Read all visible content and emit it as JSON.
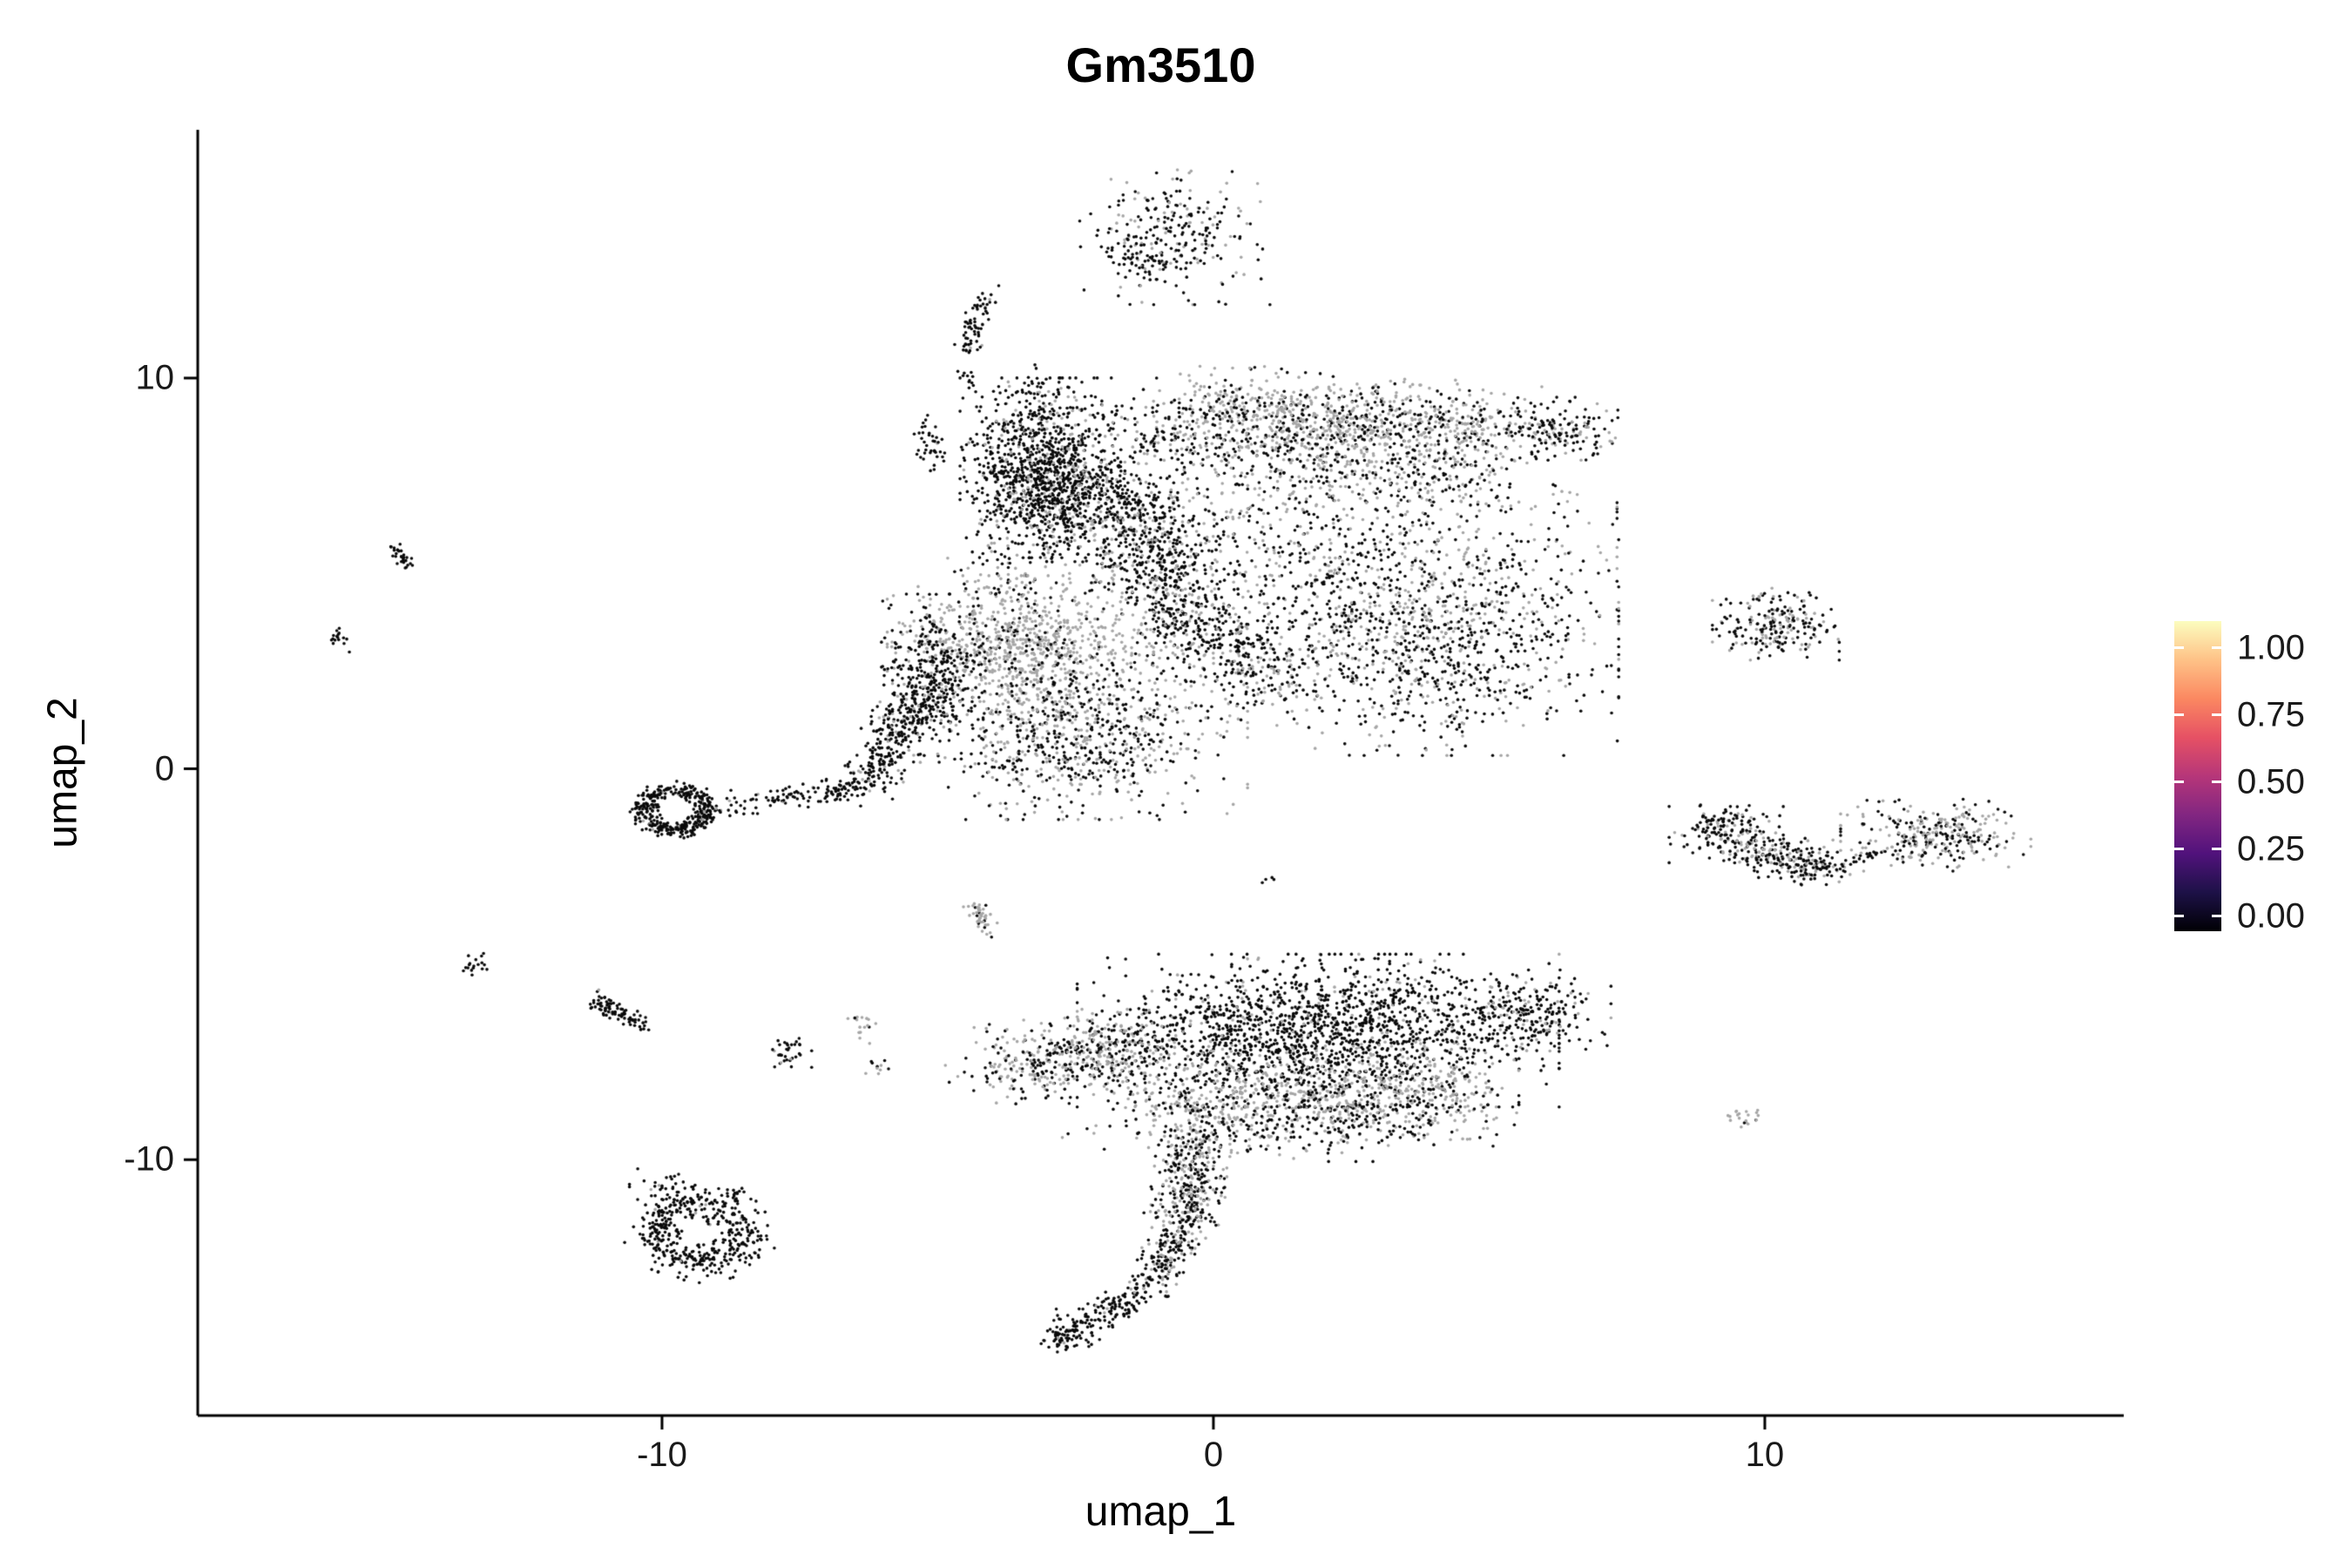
{
  "figure": {
    "title": "Gm3510",
    "xlabel": "umap_1",
    "ylabel": "umap_2"
  },
  "chart_data": {
    "type": "scatter",
    "title": "Gm3510",
    "xlabel": "umap_1",
    "ylabel": "umap_2",
    "xlim": [
      -18.42,
      16.51
    ],
    "ylim": [
      -16.55,
      16.35
    ],
    "x_ticks": [
      -10,
      0,
      10
    ],
    "x_tick_labels": [
      "-10",
      "0",
      "10"
    ],
    "y_ticks": [
      10,
      0,
      -10
    ],
    "y_tick_labels": [
      "10",
      "0",
      "-10"
    ],
    "grid": false,
    "legend": {
      "position": "right",
      "ticks": [
        1.0,
        0.75,
        0.5,
        0.25,
        0.0
      ],
      "tick_labels": [
        "1.00",
        "0.75",
        "0.50",
        "0.25",
        "0.00"
      ],
      "range": [
        -0.056,
        1.1
      ],
      "gradient_bottom_to_top": [
        "#000004",
        "#1D1147",
        "#51127C",
        "#822681",
        "#B63679",
        "#E65164",
        "#FB8861",
        "#FEC287",
        "#FCFDBF"
      ]
    },
    "point_colors": {
      "expression_low_black": "#0A0A0A",
      "background_gray": "#A6A6A6"
    },
    "point_radius_px": 1.8,
    "clusters": [
      {
        "kind": "blob",
        "x": -0.7,
        "y": 13.6,
        "sx": 0.75,
        "sy": 0.75,
        "n": 260,
        "gray": 0.3
      },
      {
        "kind": "blob",
        "x": -1.4,
        "y": 13.1,
        "sx": 0.3,
        "sy": 0.3,
        "n": 40,
        "gray": 0.1
      },
      {
        "kind": "streak",
        "x1": -4.15,
        "y1": 12.2,
        "x2": -4.5,
        "y2": 10.6,
        "w": 0.12,
        "n": 70,
        "gray": 0.05
      },
      {
        "kind": "blob",
        "x": -4.45,
        "y": 9.9,
        "sx": 0.1,
        "sy": 0.2,
        "n": 12,
        "gray": 0
      },
      {
        "kind": "blob",
        "x": -5.15,
        "y": 8.3,
        "sx": 0.12,
        "sy": 0.45,
        "n": 40,
        "gray": 0.05
      },
      {
        "kind": "blob",
        "x": -3.3,
        "y": 9.3,
        "sx": 0.25,
        "sy": 0.45,
        "n": 50,
        "gray": 0.15
      },
      {
        "kind": "blob",
        "x": -3.1,
        "y": 7.7,
        "sx": 0.65,
        "sy": 1.0,
        "n": 1000,
        "gray": 0.12
      },
      {
        "kind": "blob",
        "x": -2.4,
        "y": 6.6,
        "sx": 0.8,
        "sy": 0.8,
        "n": 350,
        "gray": 0.35
      },
      {
        "kind": "streak",
        "x1": -0.3,
        "y1": 9.3,
        "x2": 5.3,
        "y2": 8.7,
        "w": 0.45,
        "n": 800,
        "gray": 0.75
      },
      {
        "kind": "streak",
        "x1": -1.5,
        "y1": 8.6,
        "x2": 5.0,
        "y2": 7.6,
        "w": 0.55,
        "n": 650,
        "gray": 0.45
      },
      {
        "kind": "blob",
        "x": 6.3,
        "y": 8.7,
        "sx": 0.45,
        "sy": 0.35,
        "n": 160,
        "gray": 0.3
      },
      {
        "kind": "blob",
        "x": 1.8,
        "y": 5.6,
        "sx": 2.4,
        "sy": 1.5,
        "n": 1000,
        "gray": 0.5
      },
      {
        "kind": "blob",
        "x": 3.9,
        "y": 3.1,
        "sx": 1.5,
        "sy": 1.2,
        "n": 900,
        "gray": 0.35
      },
      {
        "kind": "streak",
        "x1": -1.8,
        "y1": 7.0,
        "x2": -0.3,
        "y2": 3.6,
        "w": 0.5,
        "n": 550,
        "gray": 0.25
      },
      {
        "kind": "streak",
        "x1": -0.3,
        "y1": 3.6,
        "x2": 1.2,
        "y2": 2.2,
        "w": 0.5,
        "n": 300,
        "gray": 0.3
      },
      {
        "kind": "blob",
        "x": -4.0,
        "y": 5.0,
        "sx": 0.5,
        "sy": 0.6,
        "n": 60,
        "gray": 0.3
      },
      {
        "kind": "blob",
        "x": -3.5,
        "y": 3.1,
        "sx": 1.05,
        "sy": 0.8,
        "n": 800,
        "gray": 0.85
      },
      {
        "kind": "blob",
        "x": -5.1,
        "y": 2.4,
        "sx": 0.4,
        "sy": 0.9,
        "n": 350,
        "gray": 0.1
      },
      {
        "kind": "blob",
        "x": -2.6,
        "y": 1.0,
        "sx": 1.4,
        "sy": 1.0,
        "n": 850,
        "gray": 0.45
      },
      {
        "kind": "streak",
        "x1": -5.4,
        "y1": 1.6,
        "x2": -6.3,
        "y2": -0.4,
        "w": 0.28,
        "n": 260,
        "gray": 0.08
      },
      {
        "kind": "streak",
        "x1": -6.4,
        "y1": -0.5,
        "x2": -8.7,
        "y2": -0.9,
        "w": 0.14,
        "n": 110,
        "gray": 0.05
      },
      {
        "kind": "ring",
        "x": -9.75,
        "y": -1.05,
        "rx": 0.6,
        "ry": 0.5,
        "jitter": 0.2,
        "n": 380,
        "gray": 0.04
      },
      {
        "kind": "streak",
        "x1": -14.9,
        "y1": 5.7,
        "x2": -14.6,
        "y2": 5.2,
        "w": 0.08,
        "n": 30,
        "gray": 0
      },
      {
        "kind": "blob",
        "x": -15.9,
        "y": 3.4,
        "sx": 0.1,
        "sy": 0.18,
        "n": 16,
        "gray": 0
      },
      {
        "kind": "blob",
        "x": 10.2,
        "y": 3.7,
        "sx": 0.5,
        "sy": 0.4,
        "n": 220,
        "gray": 0.35
      },
      {
        "kind": "blob",
        "x": 9.3,
        "y": -1.6,
        "sx": 0.45,
        "sy": 0.35,
        "n": 170,
        "gray": 0.25
      },
      {
        "kind": "streak",
        "x1": 9.7,
        "y1": -2.0,
        "x2": 11.2,
        "y2": -2.6,
        "w": 0.25,
        "n": 240,
        "gray": 0.3
      },
      {
        "kind": "streak",
        "x1": 11.4,
        "y1": -2.45,
        "x2": 12.2,
        "y2": -2.1,
        "w": 0.06,
        "n": 22,
        "gray": 0.1
      },
      {
        "kind": "blob",
        "x": 13.1,
        "y": -1.7,
        "sx": 0.75,
        "sy": 0.4,
        "n": 300,
        "gray": 0.55
      },
      {
        "kind": "blob",
        "x": 1.0,
        "y": -2.9,
        "sx": 0.07,
        "sy": 0.07,
        "n": 4,
        "gray": 0
      },
      {
        "kind": "streak",
        "x1": -4.4,
        "y1": -3.4,
        "x2": -4.0,
        "y2": -4.2,
        "w": 0.1,
        "n": 45,
        "gray": 0.8
      },
      {
        "kind": "blob",
        "x": -13.4,
        "y": -5.0,
        "sx": 0.12,
        "sy": 0.12,
        "n": 18,
        "gray": 0
      },
      {
        "kind": "streak",
        "x1": -11.3,
        "y1": -5.9,
        "x2": -10.3,
        "y2": -6.6,
        "w": 0.12,
        "n": 90,
        "gray": 0.04
      },
      {
        "kind": "blob",
        "x": -7.7,
        "y": -7.3,
        "sx": 0.18,
        "sy": 0.22,
        "n": 35,
        "gray": 0.1
      },
      {
        "kind": "blob",
        "x": -6.4,
        "y": -6.6,
        "sx": 0.12,
        "sy": 0.2,
        "n": 16,
        "gray": 0.85
      },
      {
        "kind": "blob",
        "x": -6.1,
        "y": -7.6,
        "sx": 0.1,
        "sy": 0.1,
        "n": 10,
        "gray": 0.8
      },
      {
        "kind": "blob",
        "x": 1.9,
        "y": -6.7,
        "sx": 1.9,
        "sy": 0.85,
        "n": 1700,
        "gray": 0.12
      },
      {
        "kind": "streak",
        "x1": -3.9,
        "y1": -7.7,
        "x2": -1.2,
        "y2": -7.1,
        "w": 0.45,
        "n": 500,
        "gray": 0.5
      },
      {
        "kind": "streak",
        "x1": -1.0,
        "y1": -8.6,
        "x2": 4.9,
        "y2": -8.2,
        "w": 0.55,
        "n": 800,
        "gray": 0.78
      },
      {
        "kind": "blob",
        "x": 1.4,
        "y": -8.9,
        "sx": 1.8,
        "sy": 0.5,
        "n": 300,
        "gray": 0.25
      },
      {
        "kind": "blob",
        "x": 5.6,
        "y": -6.3,
        "sx": 0.7,
        "sy": 0.5,
        "n": 250,
        "gray": 0.25
      },
      {
        "kind": "streak",
        "x1": -0.3,
        "y1": -9.5,
        "x2": -0.6,
        "y2": -11.8,
        "w": 0.3,
        "n": 380,
        "gray": 0.45
      },
      {
        "kind": "streak",
        "x1": -0.6,
        "y1": -11.8,
        "x2": -1.1,
        "y2": -13.2,
        "w": 0.2,
        "n": 160,
        "gray": 0.25
      },
      {
        "kind": "streak",
        "x1": -1.2,
        "y1": -13.3,
        "x2": -2.6,
        "y2": -14.5,
        "w": 0.18,
        "n": 140,
        "gray": 0.1
      },
      {
        "kind": "blob",
        "x": -2.7,
        "y": -14.4,
        "sx": 0.2,
        "sy": 0.25,
        "n": 60,
        "gray": 0.05
      },
      {
        "kind": "ring",
        "x": -9.3,
        "y": -11.9,
        "rx": 0.85,
        "ry": 0.8,
        "jitter": 0.28,
        "n": 420,
        "gray": 0.03
      },
      {
        "kind": "blob",
        "x": -9.9,
        "y": -10.8,
        "sx": 0.3,
        "sy": 0.25,
        "n": 45,
        "gray": 0.05
      },
      {
        "kind": "blob",
        "x": -8.6,
        "y": -10.9,
        "sx": 0.15,
        "sy": 0.12,
        "n": 14,
        "gray": 0
      },
      {
        "kind": "blob",
        "x": 9.6,
        "y": -8.9,
        "sx": 0.18,
        "sy": 0.12,
        "n": 20,
        "gray": 0.9
      }
    ]
  }
}
